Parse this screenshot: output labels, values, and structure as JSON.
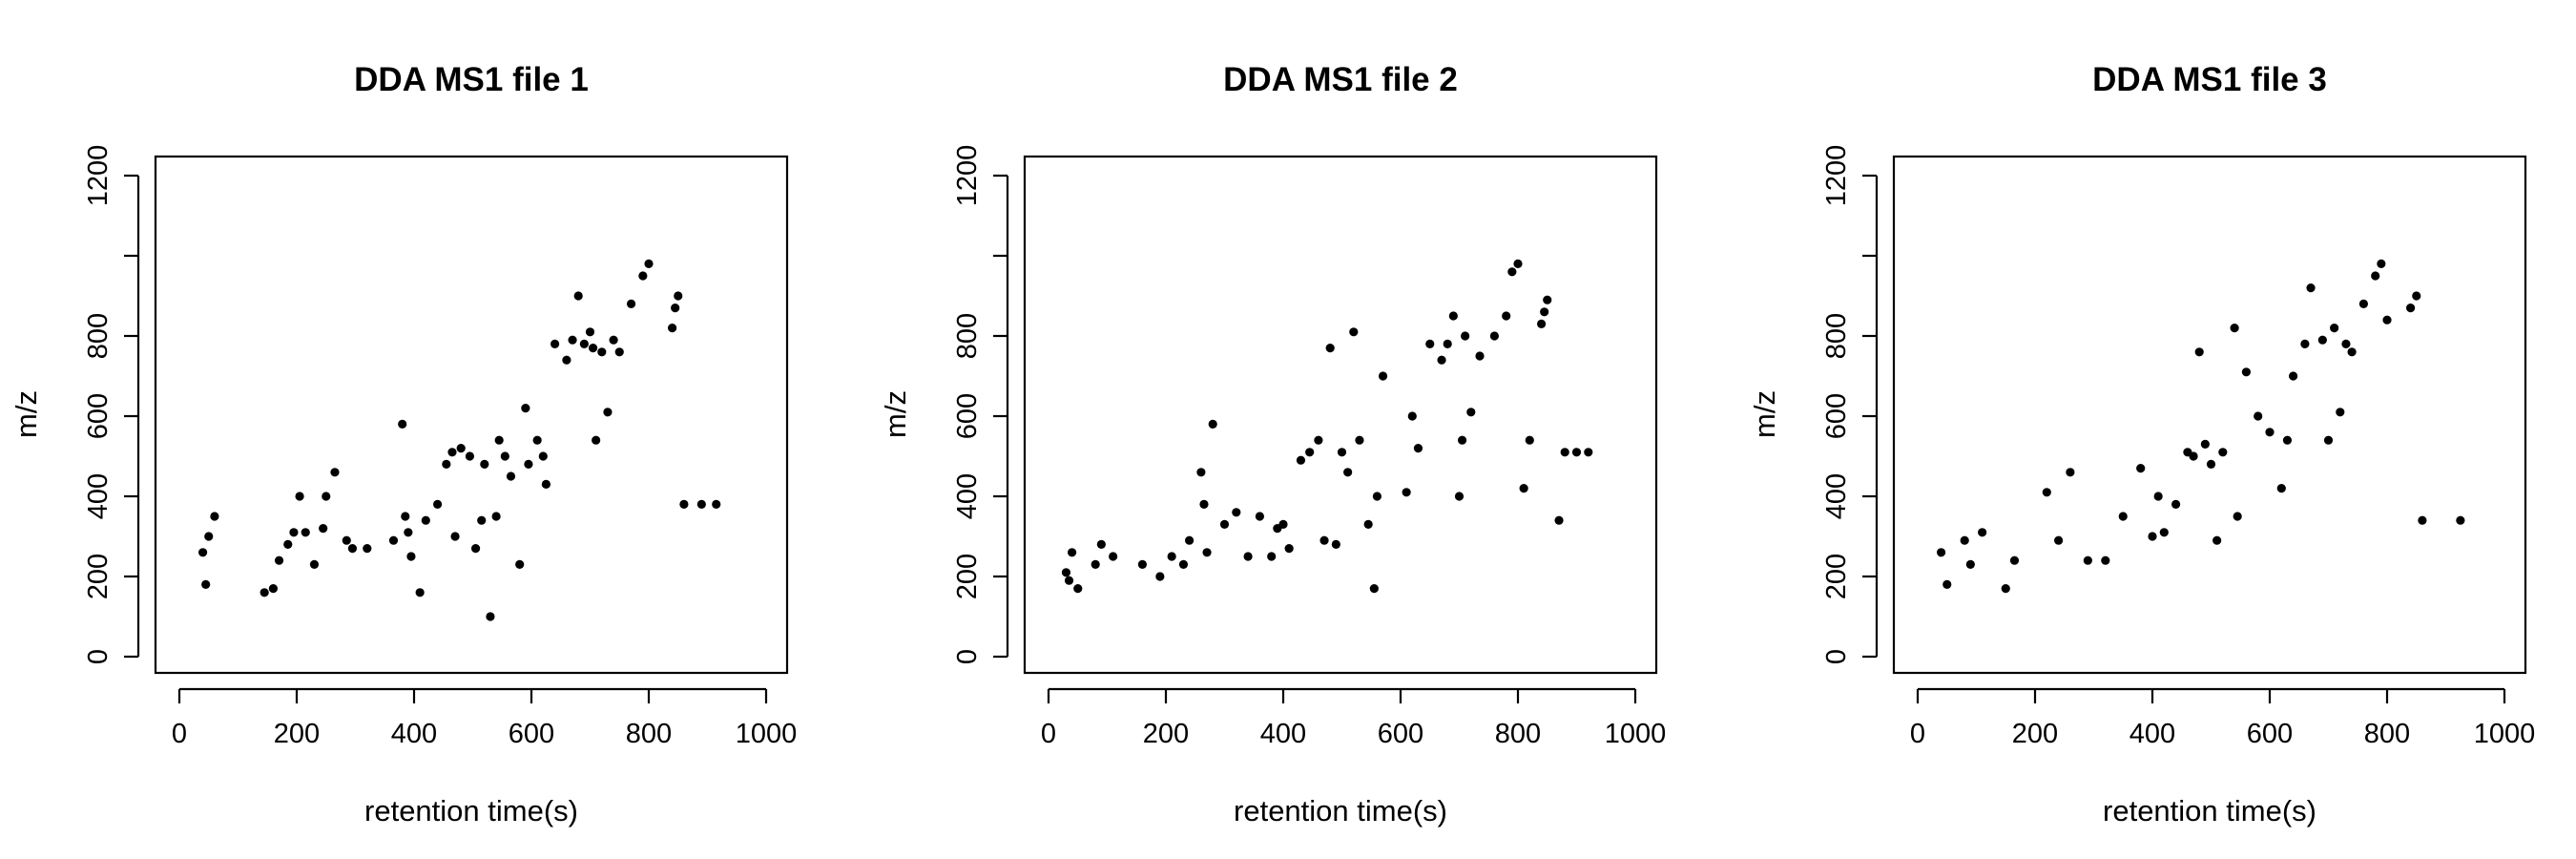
{
  "chart_data": [
    {
      "type": "scatter",
      "title": "DDA MS1 file 1",
      "xlabel": "retention time(s)",
      "ylabel": "m/z",
      "xlim": [
        0,
        1000
      ],
      "ylim": [
        0,
        1200
      ],
      "xticks": [
        "0",
        "200",
        "400",
        "600",
        "800",
        "1000"
      ],
      "yticks": [
        "0",
        "200",
        "400",
        "600",
        "800",
        "1200"
      ],
      "grid": false,
      "point_color": "#000000",
      "x": [
        40,
        45,
        50,
        60,
        145,
        160,
        170,
        185,
        195,
        205,
        215,
        230,
        245,
        250,
        265,
        285,
        295,
        320,
        365,
        380,
        385,
        390,
        395,
        410,
        420,
        440,
        455,
        465,
        470,
        480,
        495,
        505,
        515,
        520,
        530,
        540,
        545,
        555,
        565,
        580,
        590,
        595,
        610,
        620,
        625,
        640,
        660,
        670,
        680,
        690,
        700,
        705,
        710,
        720,
        730,
        740,
        750,
        770,
        790,
        800,
        840,
        845,
        850,
        860,
        890,
        915
      ],
      "y": [
        260,
        180,
        300,
        350,
        160,
        170,
        240,
        280,
        310,
        400,
        310,
        230,
        320,
        400,
        460,
        290,
        270,
        270,
        290,
        580,
        350,
        310,
        250,
        160,
        340,
        380,
        480,
        510,
        300,
        520,
        500,
        270,
        340,
        480,
        100,
        350,
        540,
        500,
        450,
        230,
        620,
        480,
        540,
        500,
        430,
        780,
        740,
        790,
        900,
        780,
        810,
        770,
        540,
        760,
        610,
        790,
        760,
        880,
        950,
        980,
        820,
        870,
        900,
        380,
        380,
        380
      ]
    },
    {
      "type": "scatter",
      "title": "DDA MS1 file 2",
      "xlabel": "retention time(s)",
      "ylabel": "m/z",
      "xlim": [
        0,
        1000
      ],
      "ylim": [
        0,
        1200
      ],
      "xticks": [
        "0",
        "200",
        "400",
        "600",
        "800",
        "1000"
      ],
      "yticks": [
        "0",
        "200",
        "400",
        "600",
        "800",
        "1200"
      ],
      "grid": false,
      "point_color": "#000000",
      "x": [
        30,
        35,
        40,
        50,
        80,
        90,
        110,
        160,
        190,
        210,
        230,
        240,
        260,
        265,
        270,
        280,
        300,
        320,
        340,
        360,
        380,
        390,
        400,
        410,
        430,
        445,
        460,
        470,
        480,
        490,
        500,
        510,
        520,
        530,
        545,
        555,
        560,
        570,
        610,
        620,
        630,
        650,
        670,
        680,
        690,
        700,
        705,
        710,
        720,
        735,
        760,
        780,
        790,
        800,
        810,
        820,
        840,
        845,
        850,
        870,
        880,
        900,
        920
      ],
      "y": [
        210,
        190,
        260,
        170,
        230,
        280,
        250,
        230,
        200,
        250,
        230,
        290,
        460,
        380,
        260,
        580,
        330,
        360,
        250,
        350,
        250,
        320,
        330,
        270,
        490,
        510,
        540,
        290,
        770,
        280,
        510,
        460,
        810,
        540,
        330,
        170,
        400,
        700,
        410,
        600,
        520,
        780,
        740,
        780,
        850,
        400,
        540,
        800,
        610,
        750,
        800,
        850,
        960,
        980,
        420,
        540,
        830,
        860,
        890,
        340,
        510,
        510,
        510
      ]
    },
    {
      "type": "scatter",
      "title": "DDA MS1 file 3",
      "xlabel": "retention time(s)",
      "ylabel": "m/z",
      "xlim": [
        0,
        1000
      ],
      "ylim": [
        0,
        1200
      ],
      "xticks": [
        "0",
        "200",
        "400",
        "600",
        "800",
        "1000"
      ],
      "yticks": [
        "0",
        "200",
        "400",
        "600",
        "800",
        "1200"
      ],
      "grid": false,
      "point_color": "#000000",
      "x": [
        40,
        50,
        80,
        90,
        110,
        150,
        165,
        220,
        240,
        260,
        290,
        320,
        350,
        380,
        400,
        410,
        420,
        440,
        460,
        470,
        480,
        490,
        500,
        510,
        520,
        540,
        545,
        560,
        580,
        600,
        620,
        630,
        640,
        660,
        670,
        690,
        700,
        710,
        720,
        730,
        740,
        760,
        780,
        790,
        800,
        840,
        850,
        860,
        925
      ],
      "y": [
        260,
        180,
        290,
        230,
        310,
        170,
        240,
        410,
        290,
        460,
        240,
        240,
        350,
        470,
        300,
        400,
        310,
        380,
        510,
        500,
        760,
        530,
        480,
        290,
        510,
        820,
        350,
        710,
        600,
        560,
        420,
        540,
        700,
        780,
        920,
        790,
        540,
        820,
        610,
        780,
        760,
        880,
        950,
        980,
        840,
        870,
        900,
        340,
        340
      ]
    }
  ]
}
